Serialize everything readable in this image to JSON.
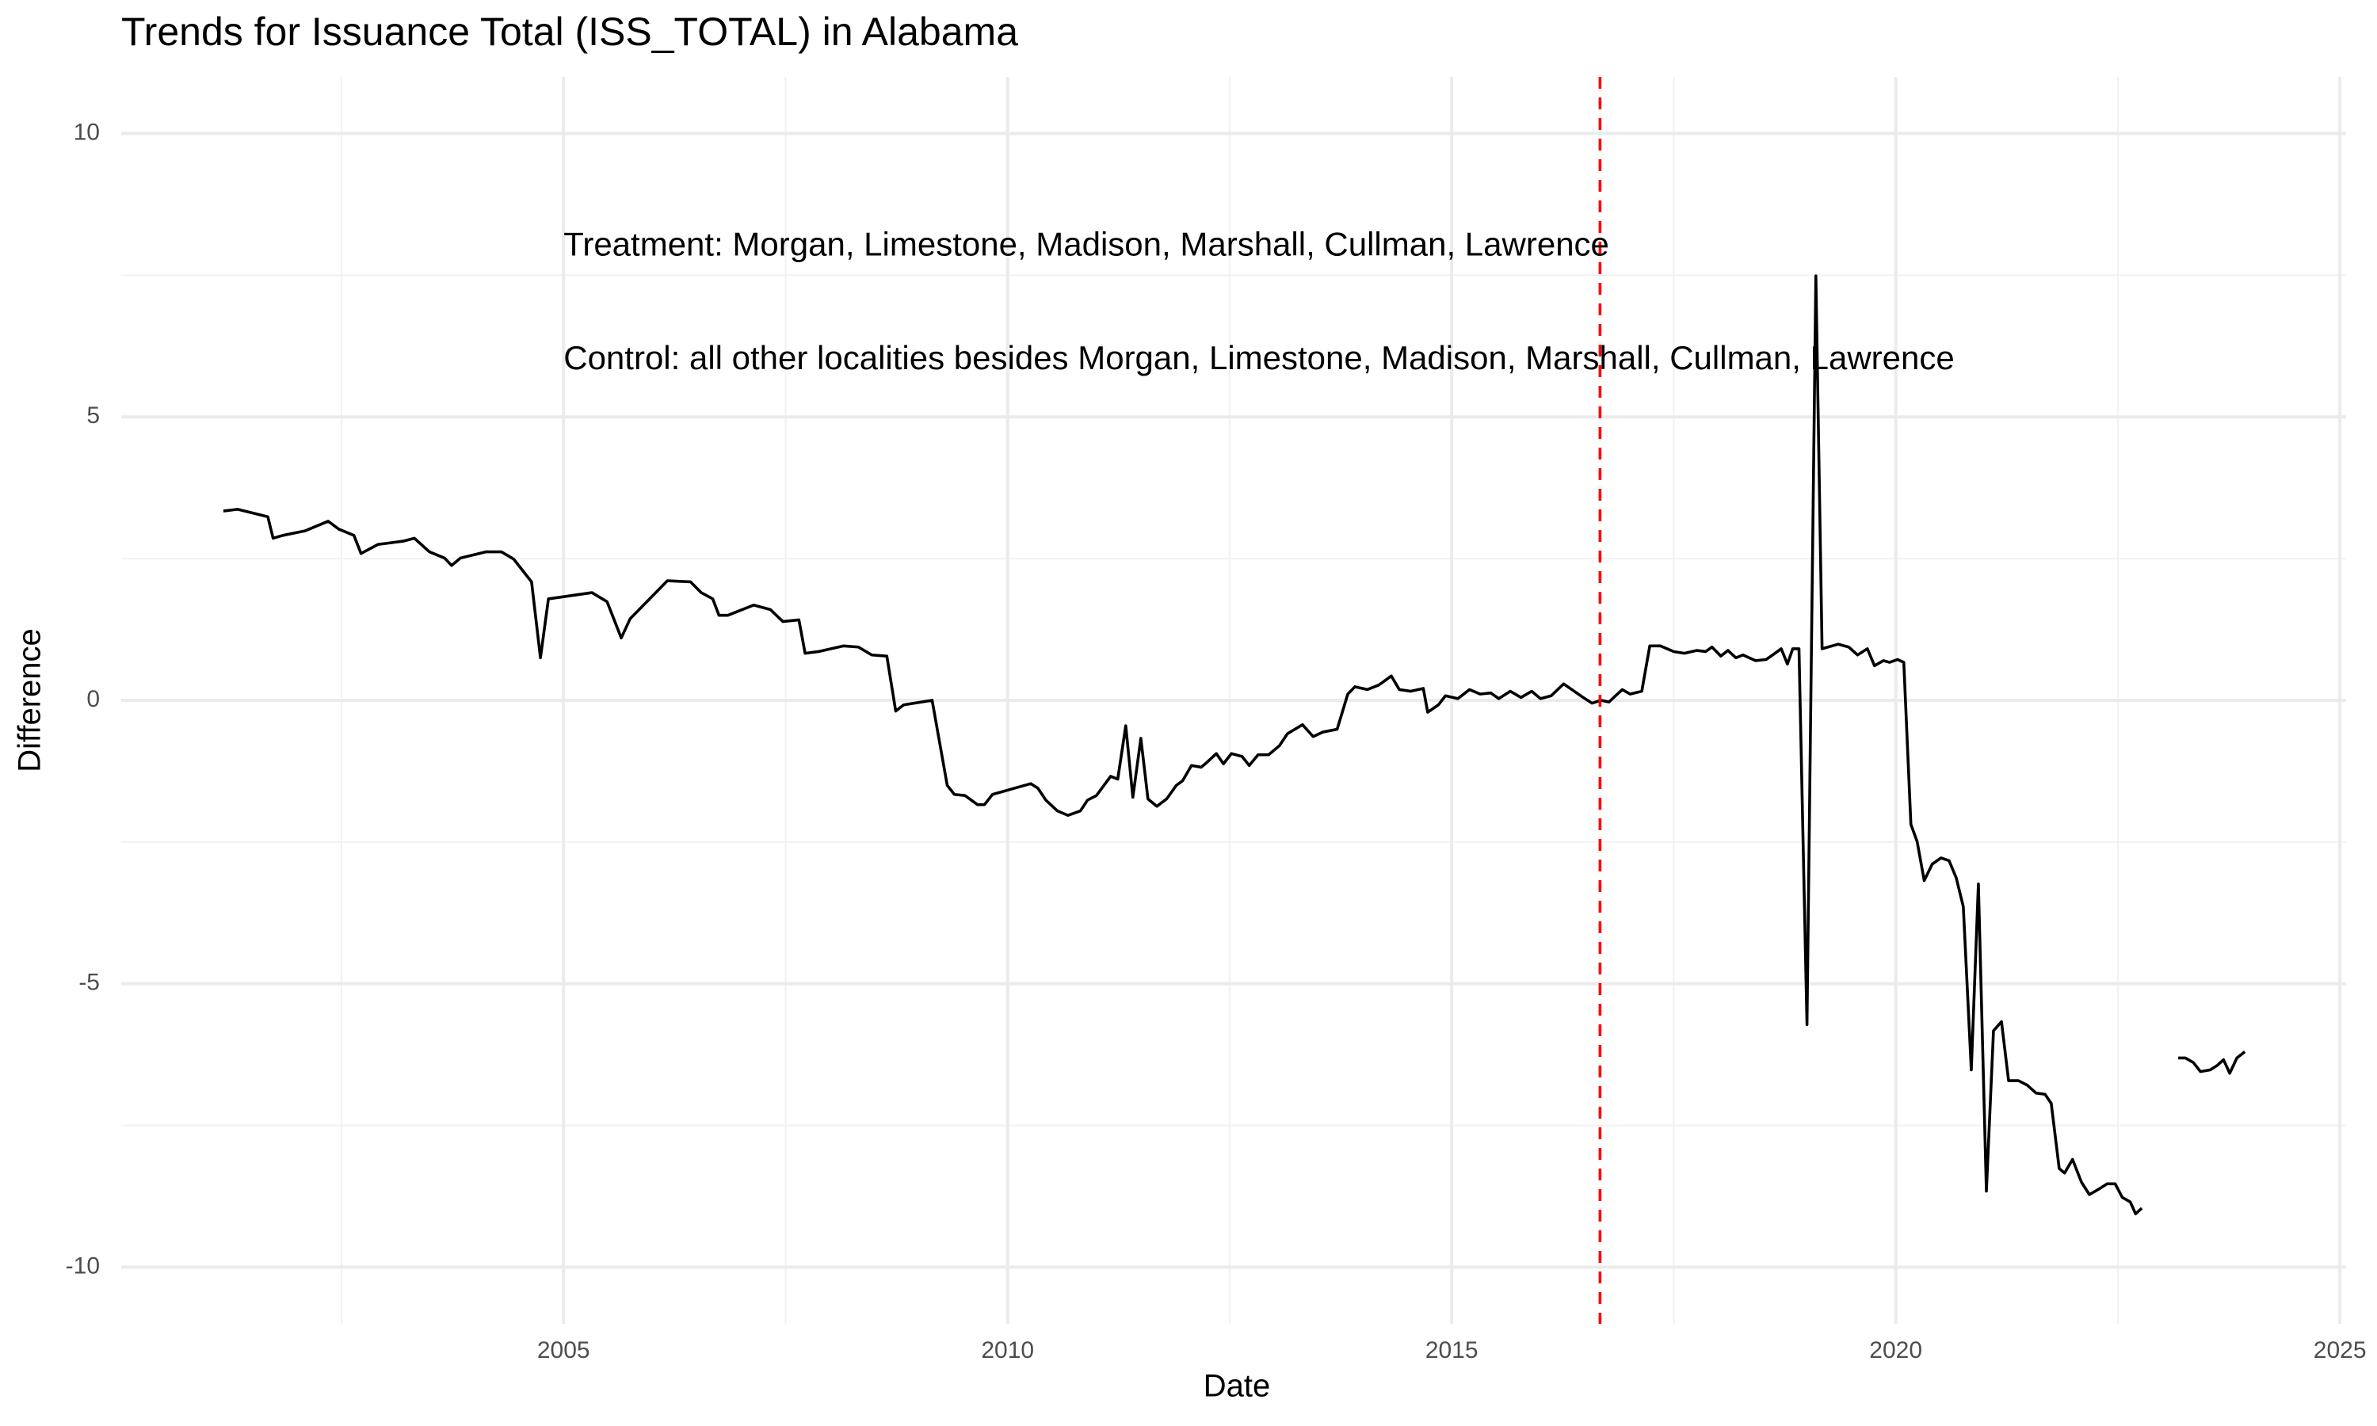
{
  "chart_data": {
    "type": "line",
    "title": "Trends for Issuance Total (ISS_TOTAL) in Alabama",
    "x_label": "Date",
    "y_label": "Difference",
    "color": "#000000",
    "grid": true,
    "xlim": [
      2000.02,
      2025.07
    ],
    "ylim": [
      -11,
      11
    ],
    "xticks": [
      2005,
      2010,
      2015,
      2020,
      2025
    ],
    "yticks": [
      -10,
      -5,
      0,
      5,
      10
    ],
    "x_minor_ticks": [
      2002.5,
      2007.5,
      2012.5,
      2017.5,
      2022.5
    ],
    "y_minor_ticks": [
      -7.5,
      -2.5,
      2.5,
      7.5
    ],
    "vline": {
      "x": 2016.67,
      "color": "#ff0000",
      "dashed": true
    },
    "annotations": [
      {
        "text": "Treatment: Morgan, Limestone, Madison, Marshall, Cullman, Lawrence",
        "x": 2005,
        "y": 8
      },
      {
        "text": "Control: all other localities besides Morgan, Limestone, Madison, Marshall, Cullman, Lawrence",
        "x": 2005,
        "y": 6
      }
    ],
    "x": [
      2001.17,
      2001.33,
      2001.67,
      2001.73,
      2001.84,
      2002.09,
      2002.35,
      2002.47,
      2002.64,
      2002.72,
      2002.91,
      2003.2,
      2003.32,
      2003.49,
      2003.66,
      2003.74,
      2003.84,
      2004.13,
      2004.3,
      2004.44,
      2004.64,
      2004.74,
      2004.83,
      2005.32,
      2005.49,
      2005.65,
      2005.75,
      2006.17,
      2006.43,
      2006.55,
      2006.68,
      2006.75,
      2006.85,
      2007.14,
      2007.33,
      2007.47,
      2007.65,
      2007.72,
      2007.87,
      2008.15,
      2008.32,
      2008.47,
      2008.64,
      2008.74,
      2008.83,
      2009.15,
      2009.32,
      2009.4,
      2009.52,
      2009.66,
      2009.74,
      2009.83,
      2010.26,
      2010.34,
      2010.43,
      2010.56,
      2010.68,
      2010.82,
      2010.9,
      2011.0,
      2011.16,
      2011.24,
      2011.33,
      2011.41,
      2011.5,
      2011.58,
      2011.68,
      2011.79,
      2011.9,
      2011.97,
      2012.07,
      2012.18,
      2012.24,
      2012.35,
      2012.43,
      2012.52,
      2012.64,
      2012.72,
      2012.82,
      2012.94,
      2013.06,
      2013.15,
      2013.32,
      2013.44,
      2013.55,
      2013.71,
      2013.83,
      2013.91,
      2014.05,
      2014.18,
      2014.32,
      2014.41,
      2014.54,
      2014.68,
      2014.73,
      2014.85,
      2014.93,
      2015.07,
      2015.2,
      2015.32,
      2015.44,
      2015.53,
      2015.66,
      2015.78,
      2015.9,
      2016.0,
      2016.12,
      2016.26,
      2016.38,
      2016.48,
      2016.58,
      2016.68,
      2016.77,
      2016.92,
      2017.01,
      2017.14,
      2017.23,
      2017.35,
      2017.5,
      2017.62,
      2017.76,
      2017.86,
      2017.93,
      2018.03,
      2018.11,
      2018.2,
      2018.28,
      2018.42,
      2018.54,
      2018.64,
      2018.71,
      2018.78,
      2018.84,
      2018.91,
      2019.0,
      2019.1,
      2019.17,
      2019.35,
      2019.47,
      2019.57,
      2019.68,
      2019.76,
      2019.86,
      2019.93,
      2020.02,
      2020.09,
      2020.17,
      2020.24,
      2020.32,
      2020.41,
      2020.51,
      2020.6,
      2020.68,
      2020.76,
      2020.85,
      2020.93,
      2021.02,
      2021.1,
      2021.19,
      2021.27,
      2021.38,
      2021.48,
      2021.58,
      2021.68,
      2021.75,
      2021.84,
      2021.9,
      2021.99,
      2022.09,
      2022.18,
      2022.3,
      2022.38,
      2022.47,
      2022.55,
      2022.64,
      2022.7,
      2022.77,
      2023.0,
      2023.18,
      2023.26,
      2023.35,
      2023.43,
      2023.54,
      2023.62,
      2023.69,
      2023.76,
      2023.84,
      2023.93
    ],
    "values": [
      3.34,
      3.37,
      3.24,
      2.86,
      2.91,
      2.99,
      3.16,
      3.02,
      2.91,
      2.59,
      2.75,
      2.81,
      2.86,
      2.62,
      2.51,
      2.38,
      2.51,
      2.62,
      2.62,
      2.49,
      2.09,
      0.75,
      1.79,
      1.9,
      1.74,
      1.1,
      1.44,
      2.11,
      2.09,
      1.9,
      1.79,
      1.5,
      1.5,
      1.68,
      1.6,
      1.39,
      1.42,
      0.83,
      0.86,
      0.96,
      0.94,
      0.8,
      0.78,
      -0.19,
      -0.08,
      0.0,
      -1.5,
      -1.66,
      -1.68,
      -1.84,
      -1.84,
      -1.66,
      -1.47,
      -1.55,
      -1.76,
      -1.95,
      -2.03,
      -1.95,
      -1.76,
      -1.68,
      -1.34,
      -1.39,
      -0.45,
      -1.71,
      -0.67,
      -1.74,
      -1.87,
      -1.74,
      -1.5,
      -1.42,
      -1.15,
      -1.18,
      -1.1,
      -0.94,
      -1.12,
      -0.94,
      -0.99,
      -1.15,
      -0.96,
      -0.96,
      -0.8,
      -0.59,
      -0.43,
      -0.64,
      -0.56,
      -0.51,
      0.11,
      0.24,
      0.19,
      0.27,
      0.43,
      0.19,
      0.16,
      0.21,
      -0.21,
      -0.08,
      0.08,
      0.03,
      0.19,
      0.11,
      0.13,
      0.03,
      0.16,
      0.05,
      0.16,
      0.03,
      0.08,
      0.29,
      0.16,
      0.05,
      -0.05,
      0.0,
      -0.03,
      0.19,
      0.11,
      0.16,
      0.96,
      0.96,
      0.86,
      0.83,
      0.88,
      0.86,
      0.94,
      0.78,
      0.88,
      0.75,
      0.8,
      0.7,
      0.72,
      0.83,
      0.91,
      0.64,
      0.91,
      0.91,
      -5.72,
      7.49,
      0.91,
      0.99,
      0.94,
      0.8,
      0.91,
      0.61,
      0.7,
      0.67,
      0.72,
      0.67,
      -2.19,
      -2.49,
      -3.18,
      -2.89,
      -2.78,
      -2.83,
      -3.13,
      -3.64,
      -6.52,
      -3.24,
      -8.66,
      -5.83,
      -5.67,
      -6.71,
      -6.71,
      -6.79,
      -6.93,
      -6.95,
      -7.11,
      -8.26,
      -8.34,
      -8.1,
      -8.5,
      -8.72,
      -8.61,
      -8.53,
      -8.53,
      -8.77,
      -8.85,
      -9.06,
      -8.96,
      null,
      -6.31,
      -6.31,
      -6.39,
      -6.55,
      -6.52,
      -6.44,
      -6.34,
      -6.58,
      -6.31,
      -6.2
    ]
  }
}
